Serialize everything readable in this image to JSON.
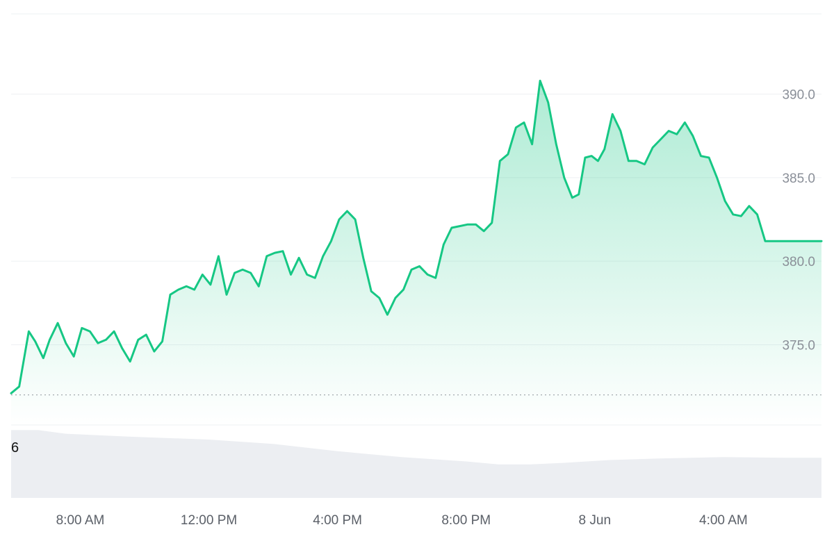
{
  "colors": {
    "line": "#16c784",
    "fill_top": "#16c784",
    "volume": "#eceef2",
    "grid": "#eef0f3",
    "axis_text": "#8a8f98",
    "baseline": "#9aa0a6"
  },
  "chart_data": {
    "type": "area",
    "title": "",
    "xlabel": "",
    "ylabel": "",
    "ylim": [
      370.2,
      394.8
    ],
    "y_ticks": [
      "375.0",
      "380.0",
      "385.0",
      "390.0"
    ],
    "x_ticks": [
      "8:00 AM",
      "12:00 PM",
      "4:00 PM",
      "8:00 PM",
      "8 Jun",
      "4:00 AM"
    ],
    "x_tick_hours": [
      8,
      12,
      16,
      20,
      24,
      28
    ],
    "x_range_hours": [
      5.85,
      31.05
    ],
    "reference_line": 372.0,
    "grid": "horizontal",
    "series": [
      {
        "x_hours": [
          5.85,
          6.1,
          6.4,
          6.6,
          6.85,
          7.05,
          7.3,
          7.55,
          7.8,
          8.05,
          8.3,
          8.55,
          8.8,
          9.05,
          9.3,
          9.55,
          9.8,
          10.05,
          10.3,
          10.55,
          10.8,
          11.05,
          11.3,
          11.55,
          11.8,
          12.05,
          12.3,
          12.55,
          12.8,
          13.05,
          13.3,
          13.55,
          13.8,
          14.05,
          14.3,
          14.55,
          14.8,
          15.05,
          15.3,
          15.55,
          15.8,
          16.05,
          16.3,
          16.55,
          16.8,
          17.05,
          17.3,
          17.55,
          17.8,
          18.05,
          18.3,
          18.55,
          18.8,
          19.05,
          19.3,
          19.55,
          19.8,
          20.05,
          20.3,
          20.55,
          20.8,
          21.05,
          21.3,
          21.55,
          21.8,
          22.05,
          22.3,
          22.55,
          22.8,
          23.05,
          23.3,
          23.5,
          23.7,
          23.9,
          24.1,
          24.3,
          24.55,
          24.8,
          25.05,
          25.3,
          25.55,
          25.8,
          26.05,
          26.3,
          26.55,
          26.8,
          27.05,
          27.3,
          27.55,
          27.8,
          28.05,
          28.3,
          28.55,
          28.8,
          29.05,
          29.3,
          29.55,
          29.8,
          30.05,
          30.3,
          30.55,
          30.8,
          31.05
        ],
        "values": [
          372.1,
          372.5,
          375.8,
          375.2,
          374.2,
          375.3,
          376.3,
          375.1,
          374.3,
          376.0,
          375.8,
          375.1,
          375.3,
          375.8,
          374.8,
          374.0,
          375.3,
          375.6,
          374.6,
          375.2,
          378.0,
          378.3,
          378.5,
          378.3,
          379.2,
          378.6,
          380.3,
          378.0,
          379.3,
          379.5,
          379.3,
          378.5,
          380.3,
          380.5,
          380.6,
          379.2,
          380.2,
          379.2,
          379.0,
          380.3,
          381.2,
          382.5,
          383.0,
          382.5,
          380.2,
          378.2,
          377.8,
          376.8,
          377.8,
          378.3,
          379.5,
          379.7,
          379.2,
          379.0,
          381.0,
          382.0,
          382.1,
          382.2,
          382.2,
          381.8,
          382.3,
          386.0,
          386.4,
          388.0,
          388.3,
          387.0,
          390.8,
          389.5,
          387.0,
          385.0,
          383.8,
          384.0,
          386.2,
          386.3,
          386.0,
          386.7,
          388.8,
          387.8,
          386.0,
          386.0,
          385.8,
          386.8,
          387.3,
          387.8,
          387.6,
          388.3,
          387.5,
          386.3,
          386.2,
          385.0,
          383.6,
          382.8,
          382.7,
          383.3,
          382.8,
          381.2,
          381.2,
          381.2,
          381.2,
          381.2,
          381.2,
          381.2,
          381.2
        ]
      }
    ],
    "volume": {
      "label": "6",
      "x_hours": [
        5.85,
        6.7,
        7.55,
        9.5,
        12.0,
        14.0,
        16.0,
        18.0,
        20.0,
        21.0,
        22.0,
        23.0,
        24.5,
        26.0,
        28.0,
        30.0,
        31.05
      ],
      "values": [
        0.93,
        0.93,
        0.88,
        0.84,
        0.8,
        0.74,
        0.64,
        0.56,
        0.5,
        0.46,
        0.46,
        0.48,
        0.52,
        0.54,
        0.56,
        0.55,
        0.55
      ]
    }
  }
}
